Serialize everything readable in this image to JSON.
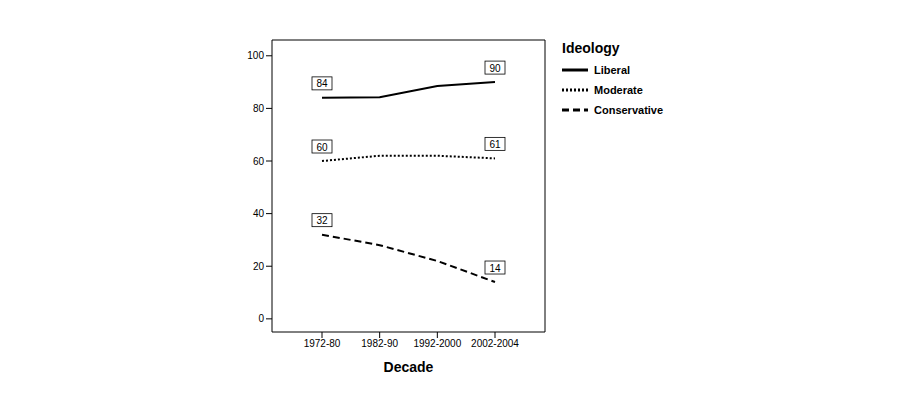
{
  "chart_data": {
    "type": "line",
    "x_label": "Decade",
    "legend_title": "Ideology",
    "legend": "right",
    "grid": false,
    "categories": [
      "1972-80",
      "1982-90",
      "1992-2000",
      "2002-2004"
    ],
    "ylim": [
      -5,
      106
    ],
    "yticks": [
      0,
      20,
      40,
      60,
      80,
      100
    ],
    "series": [
      {
        "name": "Liberal",
        "color": "#000000",
        "line_style": "solid",
        "marker": "none",
        "values": [
          84,
          84.2,
          88.5,
          90
        ],
        "value_labels": [
          "84",
          null,
          null,
          "90"
        ]
      },
      {
        "name": "Moderate",
        "color": "#000000",
        "line_style": "dotted",
        "marker": "none",
        "values": [
          60,
          62,
          62,
          61
        ],
        "value_labels": [
          "60",
          null,
          null,
          "61"
        ]
      },
      {
        "name": "Conservative",
        "color": "#000000",
        "line_style": "dashed",
        "marker": "none",
        "values": [
          32,
          28,
          22,
          14
        ],
        "value_labels": [
          "32",
          null,
          null,
          "14"
        ]
      }
    ]
  }
}
